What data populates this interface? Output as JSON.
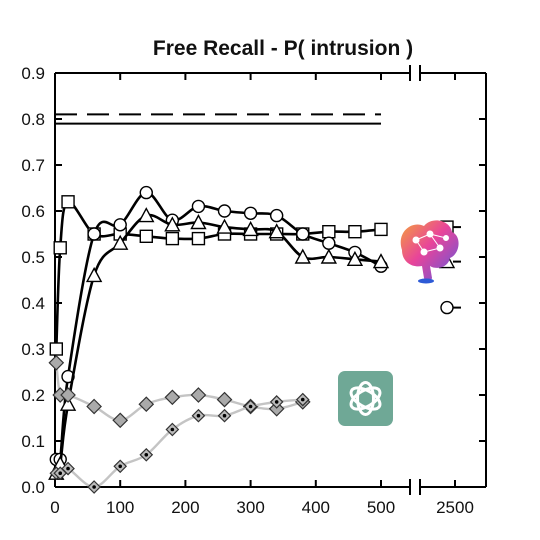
{
  "chart_data": {
    "type": "line",
    "title": "Free Recall - P( intrusion )",
    "xlabel": "",
    "ylabel": "",
    "xlim": [
      0,
      500
    ],
    "x_break_tick": 2500,
    "ylim": [
      0,
      0.9
    ],
    "x_ticks": [
      "0",
      "100",
      "200",
      "300",
      "400",
      "500",
      "2500"
    ],
    "y_ticks": [
      "0.0",
      "0.1",
      "0.2",
      "0.3",
      "0.4",
      "0.5",
      "0.6",
      "0.7",
      "0.8",
      "0.9"
    ],
    "grid": false,
    "reference_lines": [
      {
        "style": "dashed",
        "y": 0.81
      },
      {
        "style": "solid",
        "y": 0.79
      }
    ],
    "series": [
      {
        "marker": "square",
        "color": "#000000",
        "x": [
          2,
          8,
          20,
          60,
          100,
          140,
          180,
          220,
          260,
          300,
          340,
          380,
          420,
          460,
          500
        ],
        "y": [
          0.3,
          0.52,
          0.62,
          0.55,
          0.55,
          0.545,
          0.54,
          0.54,
          0.55,
          0.55,
          0.55,
          0.55,
          0.555,
          0.555,
          0.56
        ],
        "break_marker_y": 0.565
      },
      {
        "marker": "circle",
        "color": "#000000",
        "x": [
          2,
          8,
          20,
          60,
          100,
          140,
          180,
          220,
          260,
          300,
          340,
          380,
          420,
          460,
          500
        ],
        "y": [
          0.06,
          0.06,
          0.24,
          0.55,
          0.57,
          0.64,
          0.58,
          0.61,
          0.6,
          0.595,
          0.59,
          0.55,
          0.53,
          0.51,
          0.48
        ],
        "break_marker_y": 0.39
      },
      {
        "marker": "triangle",
        "color": "#000000",
        "x": [
          2,
          8,
          20,
          60,
          100,
          140,
          180,
          220,
          260,
          300,
          340,
          380,
          420,
          460,
          500
        ],
        "y": [
          0.03,
          0.05,
          0.18,
          0.46,
          0.53,
          0.59,
          0.57,
          0.575,
          0.565,
          0.56,
          0.555,
          0.5,
          0.5,
          0.495,
          0.49
        ],
        "break_marker_y": 0.49
      },
      {
        "marker": "diamond",
        "color": "#999999",
        "x": [
          2,
          8,
          20,
          60,
          100,
          140,
          180,
          220,
          260,
          300,
          340,
          380
        ],
        "y": [
          0.27,
          0.2,
          0.2,
          0.175,
          0.145,
          0.18,
          0.195,
          0.2,
          0.19,
          0.175,
          0.17,
          0.185
        ]
      },
      {
        "marker": "dotted-diamond",
        "color": "#999999",
        "x": [
          2,
          8,
          20,
          60,
          100,
          140,
          180,
          220,
          260,
          300,
          340,
          380
        ],
        "y": [
          0.03,
          0.03,
          0.04,
          0.0,
          0.045,
          0.07,
          0.125,
          0.155,
          0.155,
          0.175,
          0.185,
          0.19
        ]
      }
    ]
  },
  "logos": {
    "brain": "brain-logo",
    "openai": "openai-logo",
    "openai_color": "#6fa896"
  }
}
